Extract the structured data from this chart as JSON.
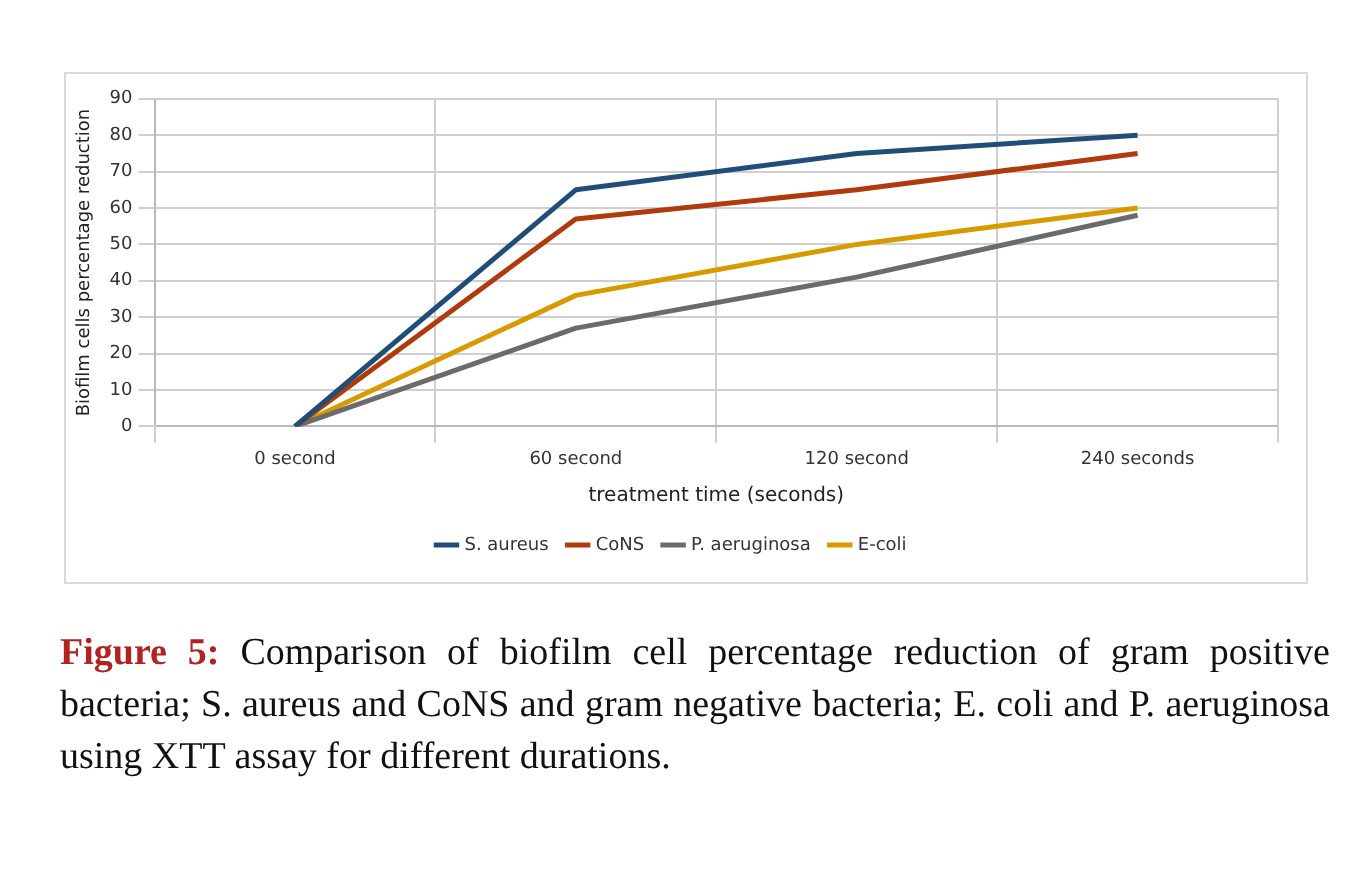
{
  "chart_data": {
    "type": "line",
    "categories": [
      "0 second",
      "60 second",
      "120 second",
      "240 seconds"
    ],
    "xlabel": "treatment time (seconds)",
    "ylabel": "Biofilm cells percentage reduction",
    "series": [
      {
        "name": "S. aureus",
        "color": "#1f4e79",
        "values": [
          0,
          65,
          75,
          80
        ]
      },
      {
        "name": "CoNS",
        "color": "#b03a0c",
        "values": [
          0,
          57,
          65,
          75
        ]
      },
      {
        "name": "P. aeruginosa",
        "color": "#6b6b6b",
        "values": [
          0,
          27,
          41,
          58
        ]
      },
      {
        "name": "E-coli",
        "color": "#d99a00",
        "values": [
          0,
          36,
          50,
          60
        ]
      }
    ],
    "ylim": [
      0,
      90
    ],
    "yticks": [
      0,
      10,
      20,
      30,
      40,
      50,
      60,
      70,
      80,
      90
    ],
    "grid": true,
    "legend": "bottom",
    "marker": "none",
    "line_style": "solid",
    "annotations": [
      "Figure 5: Comparison of biofilm cell percentage reduction of gram positive bacteria; S. aureus and CoNS and gram negative bacteria; E. coli and P. aeruginosa using XTT assay for different durations."
    ]
  }
}
